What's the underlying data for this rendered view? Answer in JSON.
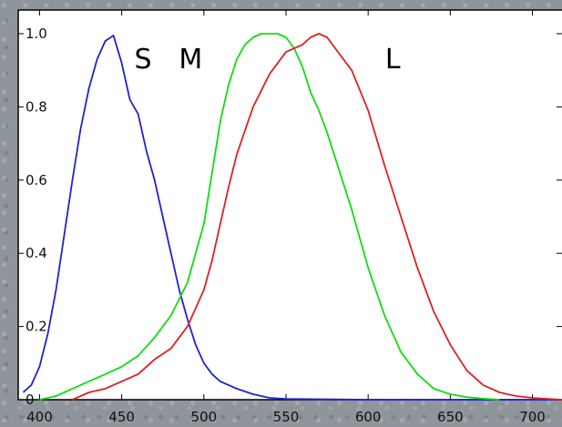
{
  "chart_data": {
    "type": "line",
    "title": "",
    "xlabel": "",
    "ylabel": "",
    "xlim": [
      387,
      718
    ],
    "ylim": [
      0,
      1.0
    ],
    "grid": false,
    "x_ticks": [
      400,
      450,
      500,
      550,
      600,
      650,
      700
    ],
    "x_tick_labels": [
      "400",
      "450",
      "500",
      "550",
      "600",
      "650",
      "700"
    ],
    "y_ticks": [
      0,
      0.2,
      0.4,
      0.6,
      0.8,
      1.0
    ],
    "y_tick_labels": [
      "0",
      "0.2",
      "0.4",
      "0.6",
      "0.8",
      "1.0"
    ],
    "series": [
      {
        "name": "S",
        "color": "#2222cc",
        "x": [
          390,
          395,
          400,
          405,
          410,
          415,
          420,
          425,
          430,
          435,
          440,
          445,
          450,
          455,
          460,
          465,
          470,
          475,
          480,
          485,
          490,
          495,
          500,
          505,
          510,
          520,
          530,
          540,
          550,
          600,
          650,
          700,
          718
        ],
        "y": [
          0.02,
          0.04,
          0.09,
          0.18,
          0.3,
          0.45,
          0.6,
          0.74,
          0.85,
          0.93,
          0.98,
          0.995,
          0.92,
          0.82,
          0.78,
          0.68,
          0.6,
          0.5,
          0.4,
          0.3,
          0.22,
          0.15,
          0.1,
          0.07,
          0.05,
          0.03,
          0.015,
          0.005,
          0.002,
          0,
          0,
          0,
          0
        ]
      },
      {
        "name": "M",
        "color": "#11dd11",
        "x": [
          400,
          410,
          420,
          430,
          440,
          450,
          460,
          470,
          480,
          490,
          500,
          505,
          510,
          515,
          520,
          525,
          530,
          535,
          540,
          545,
          550,
          555,
          560,
          565,
          570,
          575,
          580,
          590,
          600,
          610,
          620,
          630,
          640,
          650,
          660,
          670,
          680
        ],
        "y": [
          0.0,
          0.01,
          0.03,
          0.05,
          0.07,
          0.09,
          0.12,
          0.17,
          0.23,
          0.32,
          0.48,
          0.62,
          0.76,
          0.86,
          0.93,
          0.97,
          0.99,
          1.0,
          1.0,
          1.0,
          0.99,
          0.96,
          0.91,
          0.84,
          0.79,
          0.73,
          0.66,
          0.52,
          0.36,
          0.23,
          0.13,
          0.07,
          0.03,
          0.015,
          0.007,
          0.003,
          0.0
        ]
      },
      {
        "name": "L",
        "color": "#dd2222",
        "x": [
          420,
          430,
          440,
          450,
          460,
          470,
          480,
          490,
          500,
          505,
          510,
          515,
          520,
          530,
          540,
          550,
          560,
          565,
          570,
          575,
          580,
          590,
          600,
          610,
          620,
          630,
          640,
          650,
          660,
          670,
          680,
          690,
          700,
          710,
          718
        ],
        "y": [
          0.0,
          0.02,
          0.03,
          0.05,
          0.07,
          0.11,
          0.14,
          0.2,
          0.3,
          0.38,
          0.48,
          0.58,
          0.67,
          0.8,
          0.89,
          0.95,
          0.97,
          0.99,
          1.0,
          0.99,
          0.96,
          0.9,
          0.79,
          0.64,
          0.5,
          0.36,
          0.24,
          0.15,
          0.08,
          0.04,
          0.02,
          0.01,
          0.005,
          0.002,
          0.0
        ]
      }
    ],
    "curve_labels": [
      {
        "text": "S",
        "x": 463,
        "y": 0.905
      },
      {
        "text": "M",
        "x": 492,
        "y": 0.905
      },
      {
        "text": "L",
        "x": 615,
        "y": 0.905
      }
    ]
  }
}
